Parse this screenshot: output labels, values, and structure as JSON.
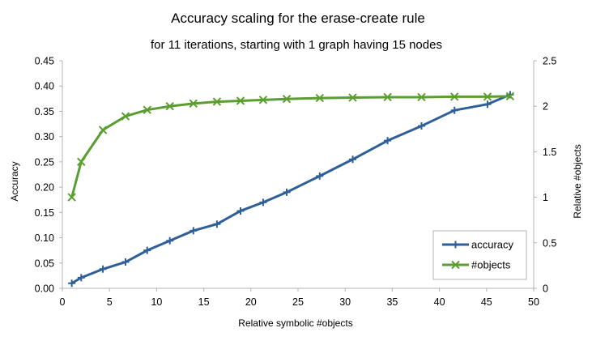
{
  "chart_data": {
    "type": "line",
    "title": "Accuracy scaling for the erase-create rule",
    "subtitle": "for 11 iterations, starting with 1 graph having 15 nodes",
    "xlabel": "Relative symbolic #objects",
    "ylabel": "Accuracy",
    "y2label": "Relative #objects",
    "xlim": [
      0,
      50
    ],
    "ylim": [
      0,
      0.45
    ],
    "y2lim": [
      0,
      2.5
    ],
    "x_ticks": [
      "0",
      "5",
      "10",
      "15",
      "20",
      "25",
      "30",
      "35",
      "40",
      "45",
      "50"
    ],
    "y_ticks": [
      "0.00",
      "0.05",
      "0.10",
      "0.15",
      "0.20",
      "0.25",
      "0.30",
      "0.35",
      "0.40",
      "0.45"
    ],
    "y2_ticks": [
      "0",
      "0.5",
      "1",
      "1.5",
      "2",
      "2.5"
    ],
    "legend_position": "bottom-right",
    "grid": false,
    "series": [
      {
        "name": "accuracy",
        "axis": "left",
        "color": "#2f5f98",
        "marker": "plus",
        "x": [
          1.0,
          2.0,
          4.3,
          6.7,
          9.0,
          11.4,
          13.9,
          16.4,
          18.9,
          21.3,
          23.8,
          27.3,
          30.8,
          34.5,
          38.1,
          41.6,
          45.1,
          47.5
        ],
        "y": [
          0.01,
          0.021,
          0.038,
          0.052,
          0.075,
          0.094,
          0.114,
          0.127,
          0.153,
          0.17,
          0.19,
          0.222,
          0.255,
          0.292,
          0.321,
          0.352,
          0.364,
          0.383
        ]
      },
      {
        "name": "#objects",
        "axis": "right",
        "color": "#5a9e2f",
        "marker": "x",
        "x": [
          1.0,
          2.0,
          4.3,
          6.7,
          9.0,
          11.4,
          13.9,
          16.4,
          18.9,
          21.3,
          23.8,
          27.3,
          30.8,
          34.5,
          38.1,
          41.6,
          45.1,
          47.5
        ],
        "y": [
          1.0,
          1.39,
          1.74,
          1.89,
          1.96,
          2.0,
          2.03,
          2.05,
          2.06,
          2.07,
          2.08,
          2.09,
          2.095,
          2.1,
          2.1,
          2.105,
          2.105,
          2.11
        ]
      }
    ]
  }
}
